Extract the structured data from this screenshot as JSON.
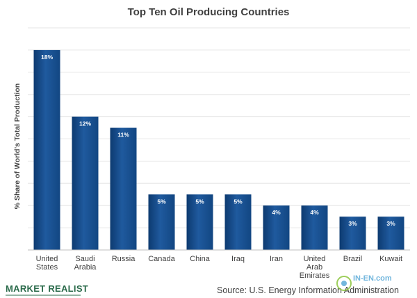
{
  "chart_data": {
    "type": "bar",
    "title": "Top Ten Oil Producing Countries",
    "ylabel": "% Share of World's Total Production",
    "xlabel": "",
    "categories": [
      [
        "United",
        "States"
      ],
      [
        "Saudi",
        "Arabia"
      ],
      [
        "Russia"
      ],
      [
        "Canada"
      ],
      [
        "China"
      ],
      [
        "Iraq"
      ],
      [
        "Iran"
      ],
      [
        "United",
        "Arab",
        "Emirates"
      ],
      [
        "Brazil"
      ],
      [
        "Kuwait"
      ]
    ],
    "category_names": [
      "United States",
      "Saudi Arabia",
      "Russia",
      "Canada",
      "China",
      "Iraq",
      "Iran",
      "United Arab Emirates",
      "Brazil",
      "Kuwait"
    ],
    "values": [
      18,
      12,
      11,
      5,
      5,
      5,
      4,
      4,
      3,
      3
    ],
    "data_labels": [
      "18%",
      "12%",
      "11%",
      "5%",
      "5%",
      "5%",
      "4%",
      "4%",
      "3%",
      "3%"
    ],
    "ylim": [
      0,
      20
    ],
    "grid": true,
    "legend": "none",
    "bar_color": "#1f5a9e",
    "bar_color_dark": "#0d3a70"
  },
  "footer": {
    "brand": "MARKET REALIST",
    "source": "Source: U.S. Energy Information Administration"
  },
  "watermark": {
    "text": "IN-EN.com",
    "icon": "in-en-logo-icon"
  }
}
